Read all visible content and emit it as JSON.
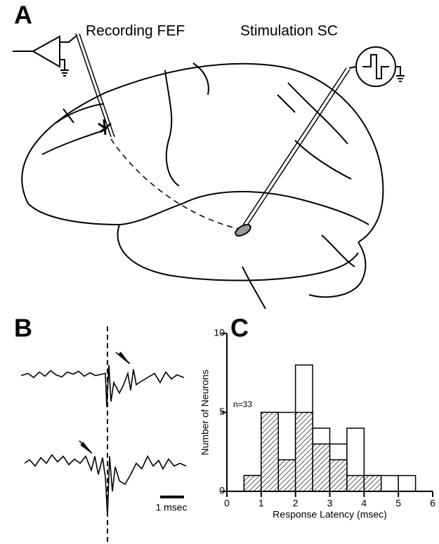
{
  "panels": {
    "A": {
      "label": "A",
      "recording_label": "Recording FEF",
      "stimulation_label": "Stimulation SC"
    },
    "B": {
      "label": "B",
      "scale_bar_label": "1 msec"
    }
  },
  "chart_data": {
    "type": "histogram",
    "panel_label": "C",
    "xlabel": "Response Latency (msec)",
    "ylabel": "Number of Neurons",
    "annotation": "n=33",
    "bins": [
      0.5,
      1.0,
      1.5,
      2.0,
      2.5,
      3.0,
      3.5,
      4.0,
      4.5,
      5.0,
      5.5
    ],
    "series": [
      {
        "values": [
          1,
          5,
          5,
          8,
          4,
          3,
          4,
          1,
          1,
          1
        ],
        "color": "#ffffff",
        "hatched": false
      },
      {
        "values": [
          1,
          5,
          2,
          5,
          3,
          2,
          1,
          1,
          0,
          0
        ],
        "color": "#ffffff",
        "hatched": true
      }
    ],
    "xlim": [
      0,
      6
    ],
    "xticks": [
      0,
      1,
      2,
      3,
      4,
      5,
      6
    ],
    "ylim": [
      0,
      10
    ],
    "yticks": [
      0,
      5,
      10
    ]
  }
}
